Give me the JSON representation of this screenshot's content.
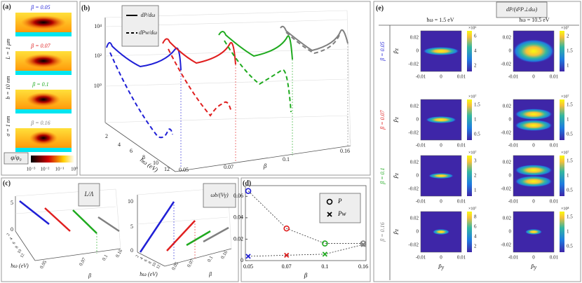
{
  "figure": {
    "panel_labels": [
      "(a)",
      "(b)",
      "(c)",
      "(d)",
      "(e)"
    ],
    "a": {
      "betas": [
        "β = 0.05",
        "β = 0.07",
        "β = 0.1",
        "β = 0.16"
      ],
      "params": [
        "L = 1 μm",
        "b = 10 nm",
        "σ = 1 nm"
      ],
      "colorbar_label": "φ/φ₀",
      "colorbar_ticks": [
        "10⁻³",
        "10⁻²",
        "10⁻¹",
        "10⁰"
      ]
    },
    "b": {
      "legend": [
        "dP/dω",
        "dPw/dω"
      ],
      "z_ticks": [
        "10⁰",
        "10²",
        "10⁴"
      ],
      "x_label": "ħω (eV)",
      "x_ticks": [
        "2",
        "4",
        "6",
        "8",
        "10",
        "12"
      ],
      "y_label": "β",
      "y_ticks": [
        "0.05",
        "0.07",
        "0.1",
        "0.16"
      ]
    },
    "c": {
      "left_legend": "L/Λ",
      "right_legend": "ωb/(Vγ)",
      "left_z_ticks": [
        "5",
        "0"
      ],
      "right_z_ticks": [
        "10",
        "5",
        "0"
      ],
      "x_label": "ħω (eV)",
      "x_ticks": [
        "2",
        "4",
        "6",
        "8",
        "10",
        "12"
      ],
      "y_label": "β",
      "y_ticks": [
        "0.05",
        "0.07",
        "0.1",
        "0.16"
      ]
    },
    "e": {
      "title": "dP/(d²P⊥dω)",
      "columns": [
        "ħω = 1.5 eV",
        "ħω = 10.5 eV"
      ],
      "rows": [
        "β = 0.05",
        "β = 0.07",
        "β = 0.1",
        "β = 0.16"
      ],
      "y_label": "P̃z",
      "x_label": "P̃y",
      "y_ticks": [
        "0.02",
        "0",
        "-0.02"
      ],
      "x_ticks": [
        "-0.01",
        "0",
        "0.01"
      ],
      "colorbars": [
        [
          {
            "scale": "×10⁶",
            "ticks": [
              "6",
              "4",
              "2"
            ]
          },
          {
            "scale": "×10⁷",
            "ticks": [
              "2",
              "1.5",
              "1"
            ]
          }
        ],
        [
          {
            "scale": "×10⁷",
            "ticks": [
              "1.5",
              "1",
              "0.5"
            ]
          },
          {
            "scale": "×10⁷",
            "ticks": [
              "1.5",
              "1",
              "0.5"
            ]
          }
        ],
        [
          {
            "scale": "×10⁷",
            "ticks": [
              "3",
              "2",
              "1"
            ]
          },
          {
            "scale": "×10⁷",
            "ticks": [
              "1.5",
              "1",
              "0.5"
            ]
          }
        ],
        [
          {
            "scale": "×10⁷",
            "ticks": [
              "8",
              "6",
              "4",
              "2"
            ]
          },
          {
            "scale": "×10⁸",
            "ticks": [
              "1.5",
              "1",
              "0.5"
            ]
          }
        ]
      ]
    }
  },
  "chart_data": {
    "type": "line",
    "categories": [
      "0.05",
      "0.07",
      "0.1",
      "0.16"
    ],
    "xlabel": "β",
    "point_colors": [
      "#1f1fd6",
      "#e01f1f",
      "#1faa1f",
      "#808080"
    ],
    "series": [
      {
        "name": "P",
        "marker": "circle",
        "color": "#333333",
        "values": [
          0.065,
          0.03,
          0.016,
          0.016
        ]
      },
      {
        "name": "Pw",
        "marker": "cross",
        "color": "#333333",
        "values": [
          0.004,
          0.005,
          0.006,
          0.015
        ]
      }
    ],
    "ylim": [
      0,
      0.07
    ],
    "yticks": [
      0,
      0.02,
      0.04,
      0.06
    ]
  }
}
